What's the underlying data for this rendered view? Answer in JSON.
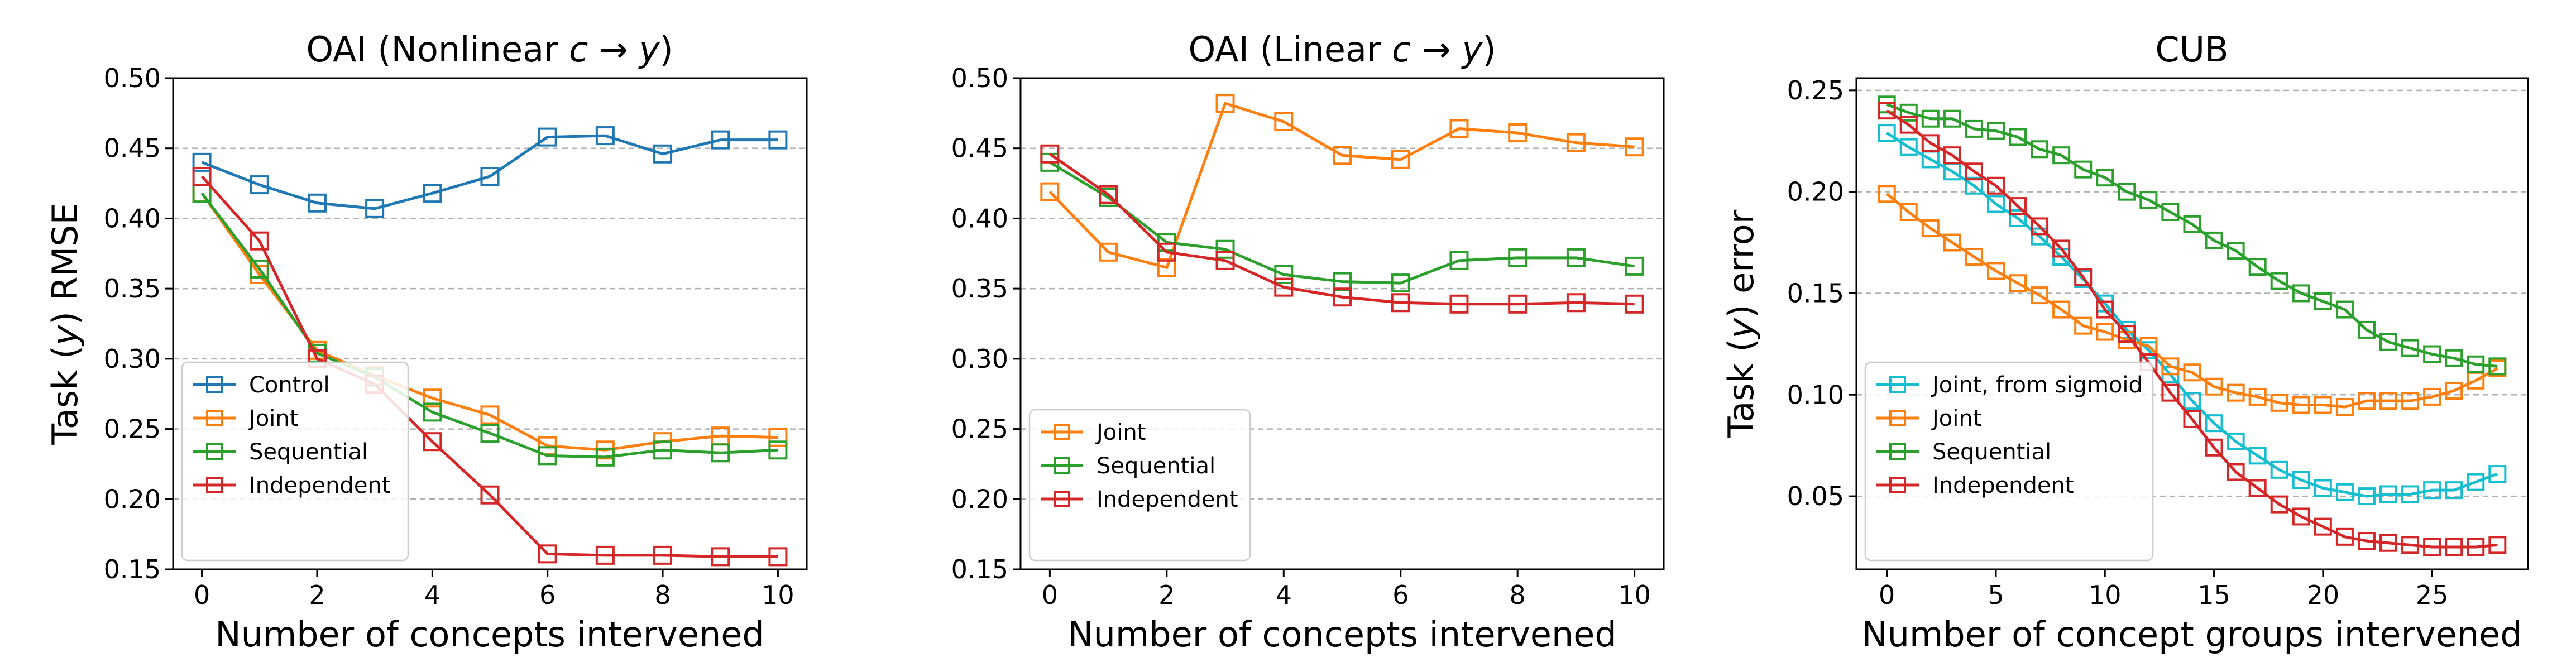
{
  "colors": {
    "Control": "#1f77b4",
    "Joint": "#ff7f0e",
    "Sequential": "#2ca02c",
    "Independent": "#d62728",
    "Joint, from sigmoid": "#17becf"
  },
  "chart_data": [
    {
      "type": "line",
      "title_main": "OAI (Nonlinear ",
      "title_c": "c",
      "title_arrow": " → ",
      "title_y": "y",
      "title_close": ")",
      "ylabel_pre": "Task (",
      "ylabel_var": "y",
      "ylabel_post": ") RMSE",
      "xlabel": "Number of concepts intervened",
      "xlim": [
        -0.5,
        10.5
      ],
      "ylim": [
        0.15,
        0.5
      ],
      "xticks": [
        0,
        2,
        4,
        6,
        8,
        10
      ],
      "xtick_labels": [
        "0",
        "2",
        "4",
        "6",
        "8",
        "10"
      ],
      "yticks": [
        0.15,
        0.2,
        0.25,
        0.3,
        0.35,
        0.4,
        0.45,
        0.5
      ],
      "ytick_labels": [
        "0.15",
        "0.20",
        "0.25",
        "0.30",
        "0.35",
        "0.40",
        "0.45",
        "0.50"
      ],
      "grid": "horizontal dashed",
      "legend_position": "lower-left",
      "x": [
        0,
        1,
        2,
        3,
        4,
        5,
        6,
        7,
        8,
        9,
        10
      ],
      "series": [
        {
          "name": "Control",
          "values": [
            0.44,
            0.424,
            0.411,
            0.407,
            0.418,
            0.43,
            0.458,
            0.459,
            0.446,
            0.456,
            0.456
          ]
        },
        {
          "name": "Joint",
          "values": [
            0.418,
            0.36,
            0.306,
            0.288,
            0.272,
            0.26,
            0.238,
            0.235,
            0.241,
            0.245,
            0.244
          ]
        },
        {
          "name": "Sequential",
          "values": [
            0.418,
            0.364,
            0.304,
            0.287,
            0.262,
            0.247,
            0.231,
            0.23,
            0.235,
            0.233,
            0.235
          ]
        },
        {
          "name": "Independent",
          "values": [
            0.43,
            0.384,
            0.3,
            0.282,
            0.241,
            0.203,
            0.161,
            0.16,
            0.16,
            0.159,
            0.159
          ]
        }
      ]
    },
    {
      "type": "line",
      "title_main": "OAI (Linear ",
      "title_c": "c",
      "title_arrow": " → ",
      "title_y": "y",
      "title_close": ")",
      "ylabel_pre": "",
      "ylabel_var": "",
      "ylabel_post": "",
      "xlabel": "Number of concepts intervened",
      "xlim": [
        -0.5,
        10.5
      ],
      "ylim": [
        0.15,
        0.5
      ],
      "xticks": [
        0,
        2,
        4,
        6,
        8,
        10
      ],
      "xtick_labels": [
        "0",
        "2",
        "4",
        "6",
        "8",
        "10"
      ],
      "yticks": [
        0.15,
        0.2,
        0.25,
        0.3,
        0.35,
        0.4,
        0.45,
        0.5
      ],
      "ytick_labels": [
        "0.15",
        "0.20",
        "0.25",
        "0.30",
        "0.35",
        "0.40",
        "0.45",
        "0.50"
      ],
      "grid": "horizontal dashed",
      "legend_position": "lower-left",
      "x": [
        0,
        1,
        2,
        3,
        4,
        5,
        6,
        7,
        8,
        9,
        10
      ],
      "series": [
        {
          "name": "Joint",
          "values": [
            0.419,
            0.376,
            0.365,
            0.482,
            0.469,
            0.445,
            0.442,
            0.464,
            0.461,
            0.454,
            0.451
          ]
        },
        {
          "name": "Sequential",
          "values": [
            0.44,
            0.415,
            0.383,
            0.378,
            0.36,
            0.355,
            0.354,
            0.37,
            0.372,
            0.372,
            0.366
          ]
        },
        {
          "name": "Independent",
          "values": [
            0.446,
            0.417,
            0.376,
            0.37,
            0.351,
            0.344,
            0.34,
            0.339,
            0.339,
            0.34,
            0.339
          ]
        }
      ]
    },
    {
      "type": "line",
      "title_main": "CUB",
      "title_c": "",
      "title_arrow": "",
      "title_y": "",
      "title_close": "",
      "ylabel_pre": "Task (",
      "ylabel_var": "y",
      "ylabel_post": ") error",
      "xlabel": "Number of concept groups intervened",
      "xlim": [
        -1.4,
        29.4
      ],
      "ylim": [
        0.014,
        0.256
      ],
      "xticks": [
        0,
        5,
        10,
        15,
        20,
        25
      ],
      "xtick_labels": [
        "0",
        "5",
        "10",
        "15",
        "20",
        "25"
      ],
      "yticks": [
        0.05,
        0.1,
        0.15,
        0.2,
        0.25
      ],
      "ytick_labels": [
        "0.05",
        "0.10",
        "0.15",
        "0.20",
        "0.25"
      ],
      "grid": "horizontal dashed",
      "legend_position": "lower-left",
      "x": [
        0,
        1,
        2,
        3,
        4,
        5,
        6,
        7,
        8,
        9,
        10,
        11,
        12,
        13,
        14,
        15,
        16,
        17,
        18,
        19,
        20,
        21,
        22,
        23,
        24,
        25,
        26,
        27,
        28
      ],
      "series": [
        {
          "name": "Joint, from sigmoid",
          "values": [
            0.229,
            0.222,
            0.216,
            0.21,
            0.203,
            0.194,
            0.187,
            0.178,
            0.168,
            0.157,
            0.145,
            0.132,
            0.122,
            0.11,
            0.097,
            0.086,
            0.077,
            0.07,
            0.063,
            0.058,
            0.054,
            0.052,
            0.05,
            0.051,
            0.051,
            0.053,
            0.053,
            0.057,
            0.061
          ]
        },
        {
          "name": "Joint",
          "values": [
            0.199,
            0.19,
            0.182,
            0.175,
            0.168,
            0.161,
            0.155,
            0.149,
            0.142,
            0.134,
            0.131,
            0.127,
            0.124,
            0.114,
            0.111,
            0.104,
            0.101,
            0.099,
            0.096,
            0.095,
            0.095,
            0.094,
            0.097,
            0.097,
            0.097,
            0.099,
            0.102,
            0.107,
            0.113
          ]
        },
        {
          "name": "Sequential",
          "values": [
            0.243,
            0.239,
            0.236,
            0.236,
            0.231,
            0.23,
            0.227,
            0.221,
            0.218,
            0.211,
            0.207,
            0.2,
            0.196,
            0.19,
            0.184,
            0.176,
            0.171,
            0.163,
            0.156,
            0.15,
            0.146,
            0.142,
            0.132,
            0.126,
            0.123,
            0.12,
            0.118,
            0.115,
            0.114
          ]
        },
        {
          "name": "Independent",
          "values": [
            0.24,
            0.233,
            0.224,
            0.218,
            0.21,
            0.203,
            0.193,
            0.183,
            0.172,
            0.158,
            0.142,
            0.13,
            0.116,
            0.101,
            0.088,
            0.074,
            0.062,
            0.054,
            0.046,
            0.04,
            0.035,
            0.03,
            0.028,
            0.027,
            0.026,
            0.025,
            0.025,
            0.025,
            0.026
          ]
        }
      ]
    }
  ]
}
